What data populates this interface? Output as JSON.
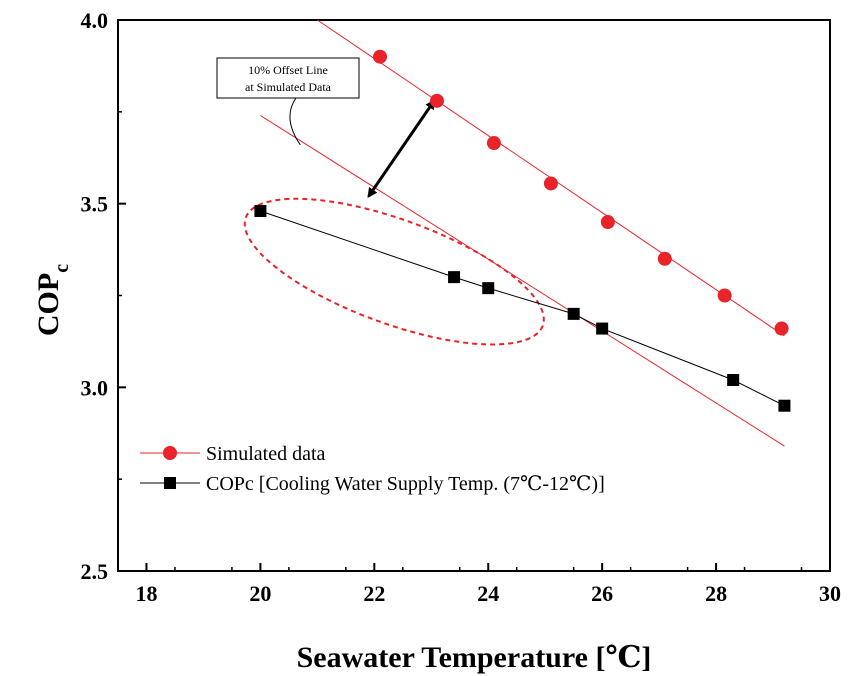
{
  "chart_data": {
    "type": "scatter",
    "xlabel": "Seawater Temperature [℃]",
    "ylabel_main": "COP",
    "ylabel_sub": "c",
    "xlim": [
      17.5,
      30
    ],
    "ylim": [
      2.5,
      4.0
    ],
    "xticks": [
      18,
      20,
      22,
      24,
      26,
      28,
      30
    ],
    "yticks": [
      2.5,
      3.0,
      3.5,
      4.0
    ],
    "xtick_labels": [
      "18",
      "20",
      "22",
      "24",
      "26",
      "28",
      "30"
    ],
    "ytick_labels": [
      "2.5",
      "3.0",
      "3.5",
      "4.0"
    ],
    "grid": false,
    "legend_position": "bottom-left",
    "series": [
      {
        "name": "Simulated data",
        "color": "#e8232a",
        "marker": "circle",
        "x": [
          22.1,
          23.1,
          24.1,
          25.1,
          26.1,
          27.1,
          28.15,
          29.15
        ],
        "y": [
          3.9,
          3.78,
          3.665,
          3.555,
          3.45,
          3.35,
          3.25,
          3.16
        ]
      },
      {
        "name": "COPc [Cooling Water Supply Temp. (7℃-12℃)]",
        "color": "#000000",
        "marker": "square",
        "x": [
          20.0,
          23.4,
          24.0,
          25.5,
          26.0,
          28.3,
          29.2
        ],
        "y": [
          3.48,
          3.3,
          3.27,
          3.2,
          3.16,
          3.02,
          2.95
        ]
      }
    ],
    "annotations": {
      "offset_label_line1": "10% Offset Line",
      "offset_label_line2": "at Simulated  Data",
      "sim_fit_line": {
        "x": [
          21.0,
          29.2
        ],
        "y": [
          4.0,
          3.14
        ]
      },
      "offset_line": {
        "x": [
          20.0,
          29.2
        ],
        "y": [
          3.74,
          2.84
        ]
      },
      "arrow": {
        "from": [
          23.05,
          3.78
        ],
        "to": [
          21.9,
          3.52
        ]
      },
      "ellipse_center": [
        22.35,
        3.315
      ],
      "callout_target": [
        20.7,
        3.66
      ]
    }
  }
}
